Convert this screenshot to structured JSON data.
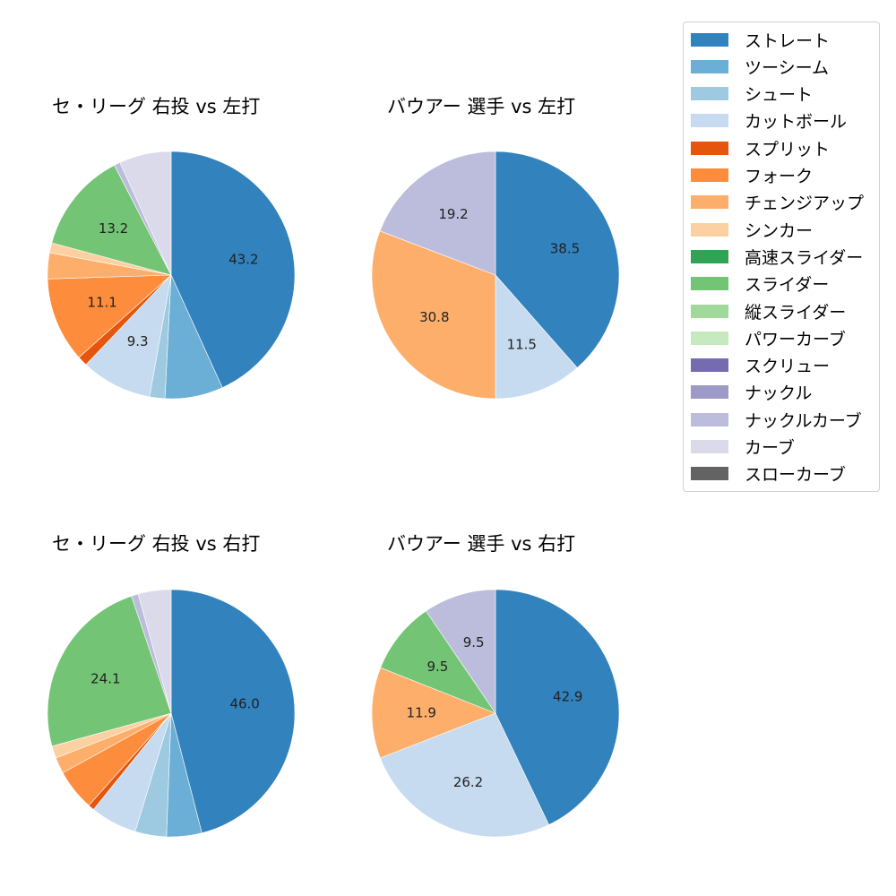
{
  "legend": {
    "items": [
      {
        "label": "ストレート",
        "color": "#3182bd"
      },
      {
        "label": "ツーシーム",
        "color": "#6baed6"
      },
      {
        "label": "シュート",
        "color": "#9ecae1"
      },
      {
        "label": "カットボール",
        "color": "#c6dbef"
      },
      {
        "label": "スプリット",
        "color": "#e6550d"
      },
      {
        "label": "フォーク",
        "color": "#fd8d3c"
      },
      {
        "label": "チェンジアップ",
        "color": "#fdae6b"
      },
      {
        "label": "シンカー",
        "color": "#fdd0a2"
      },
      {
        "label": "高速スライダー",
        "color": "#31a354"
      },
      {
        "label": "スライダー",
        "color": "#74c476"
      },
      {
        "label": "縦スライダー",
        "color": "#a1d99b"
      },
      {
        "label": "パワーカーブ",
        "color": "#c7e9c0"
      },
      {
        "label": "スクリュー",
        "color": "#756bb1"
      },
      {
        "label": "ナックル",
        "color": "#9e9ac8"
      },
      {
        "label": "ナックルカーブ",
        "color": "#bcbddc"
      },
      {
        "label": "カーブ",
        "color": "#dadaeb"
      },
      {
        "label": "スローカーブ",
        "color": "#636363"
      }
    ]
  },
  "chart_data": [
    {
      "type": "pie",
      "title": "セ・リーグ 右投 vs 左打",
      "categories": [
        "ストレート",
        "ツーシーム",
        "シュート",
        "カットボール",
        "スプリット",
        "フォーク",
        "チェンジアップ",
        "シンカー",
        "スライダー",
        "ナックルカーブ",
        "カーブ"
      ],
      "values": [
        43.2,
        7.6,
        2.0,
        9.3,
        1.3,
        11.1,
        3.4,
        1.3,
        13.2,
        0.8,
        6.8
      ],
      "labels": [
        "43.2",
        "",
        "",
        "9.3",
        "",
        "11.1",
        "",
        "",
        "13.2",
        "",
        ""
      ],
      "startangle": 90,
      "counterclock": false
    },
    {
      "type": "pie",
      "title": "バウアー 選手 vs 左打",
      "categories": [
        "ストレート",
        "カットボール",
        "チェンジアップ",
        "ナックルカーブ"
      ],
      "values": [
        38.5,
        11.5,
        30.8,
        19.2
      ],
      "labels": [
        "38.5",
        "11.5",
        "30.8",
        "19.2"
      ],
      "startangle": 90,
      "counterclock": false
    },
    {
      "type": "pie",
      "title": "セ・リーグ 右投 vs 右打",
      "categories": [
        "ストレート",
        "ツーシーム",
        "シュート",
        "カットボール",
        "スプリット",
        "フォーク",
        "チェンジアップ",
        "シンカー",
        "スライダー",
        "ナックルカーブ",
        "カーブ"
      ],
      "values": [
        46.0,
        4.6,
        4.1,
        6.1,
        0.8,
        5.4,
        2.1,
        1.6,
        24.1,
        0.9,
        4.3
      ],
      "labels": [
        "46.0",
        "",
        "",
        "",
        "",
        "",
        "",
        "",
        "24.1",
        "",
        ""
      ],
      "startangle": 90,
      "counterclock": false
    },
    {
      "type": "pie",
      "title": "バウアー 選手 vs 右打",
      "categories": [
        "ストレート",
        "カットボール",
        "チェンジアップ",
        "スライダー",
        "ナックルカーブ"
      ],
      "values": [
        42.9,
        26.2,
        11.9,
        9.5,
        9.5
      ],
      "labels": [
        "42.9",
        "26.2",
        "11.9",
        "9.5",
        "9.5"
      ],
      "startangle": 90,
      "counterclock": false
    }
  ]
}
